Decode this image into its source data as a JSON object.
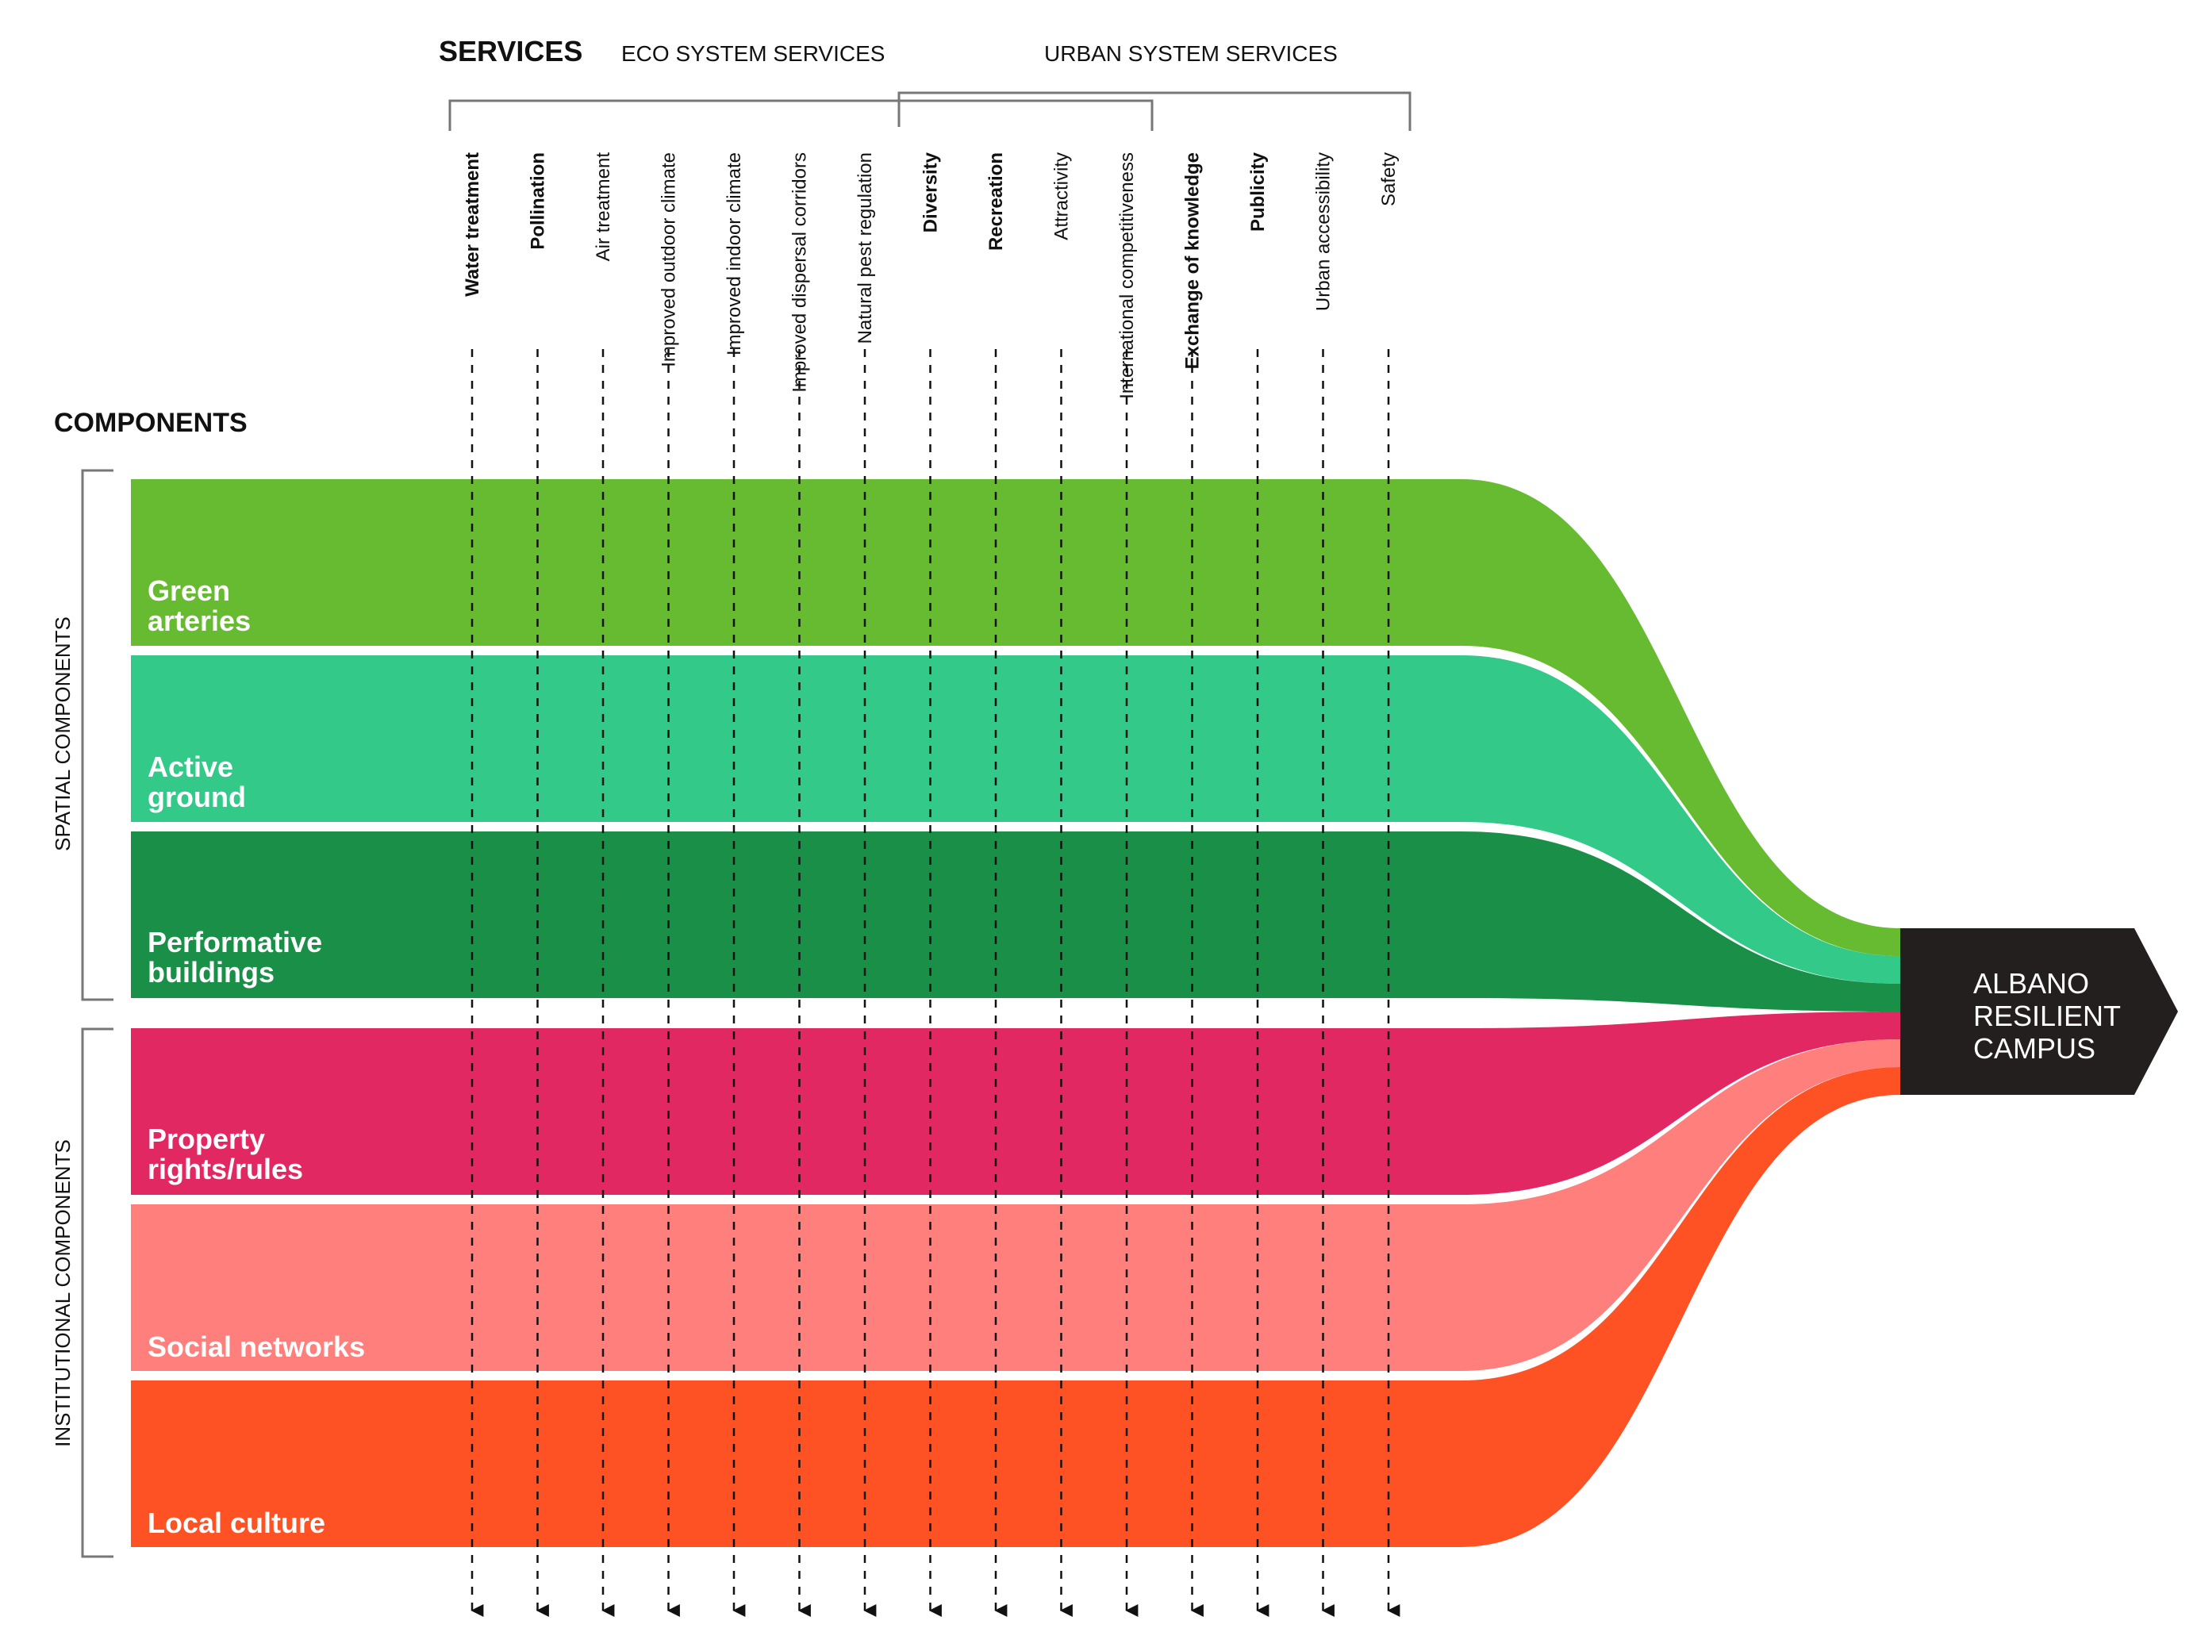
{
  "header": {
    "services_label": "SERVICES",
    "eco_label": "ECO SYSTEM SERVICES",
    "urban_label": "URBAN SYSTEM SERVICES",
    "components_label": "COMPONENTS"
  },
  "groups": {
    "spatial_label": "SPATIAL COMPONENTS",
    "institutional_label": "INSTITUTIONAL COMPONENTS"
  },
  "services": [
    {
      "label": "Water treatment",
      "bold": true
    },
    {
      "label": "Pollination",
      "bold": true
    },
    {
      "label": "Air treatment",
      "bold": false
    },
    {
      "label": "Improved outdoor climate",
      "bold": false
    },
    {
      "label": "Improved indoor climate",
      "bold": false
    },
    {
      "label": "Improved dispersal corridors",
      "bold": false
    },
    {
      "label": "Natural pest regulation",
      "bold": false
    },
    {
      "label": "Diversity",
      "bold": true
    },
    {
      "label": "Recreation",
      "bold": true
    },
    {
      "label": "Attractivity",
      "bold": false
    },
    {
      "label": "International competitiveness",
      "bold": false
    },
    {
      "label": "Exchange of knowledge",
      "bold": true
    },
    {
      "label": "Publicity",
      "bold": true
    },
    {
      "label": "Urban accessibility",
      "bold": false
    },
    {
      "label": "Safety",
      "bold": false
    }
  ],
  "components": [
    {
      "line1": "Green",
      "line2": "arteries",
      "color": "#67bb31"
    },
    {
      "line1": "Active",
      "line2": "ground",
      "color": "#21c47f"
    },
    {
      "line1": "Performative",
      "line2": "buildings",
      "color": "#078537"
    },
    {
      "line1": "Property",
      "line2": "rights/rules",
      "color": "#df1655"
    },
    {
      "line1": "Social networks",
      "line2": "",
      "color": "#ff7471"
    },
    {
      "line1": "Local culture",
      "line2": "",
      "color": "#ff5224"
    }
  ],
  "target": {
    "line1": "ALBANO",
    "line2": "RESILIENT",
    "line3": "CAMPUS",
    "color": "#231f1e"
  }
}
